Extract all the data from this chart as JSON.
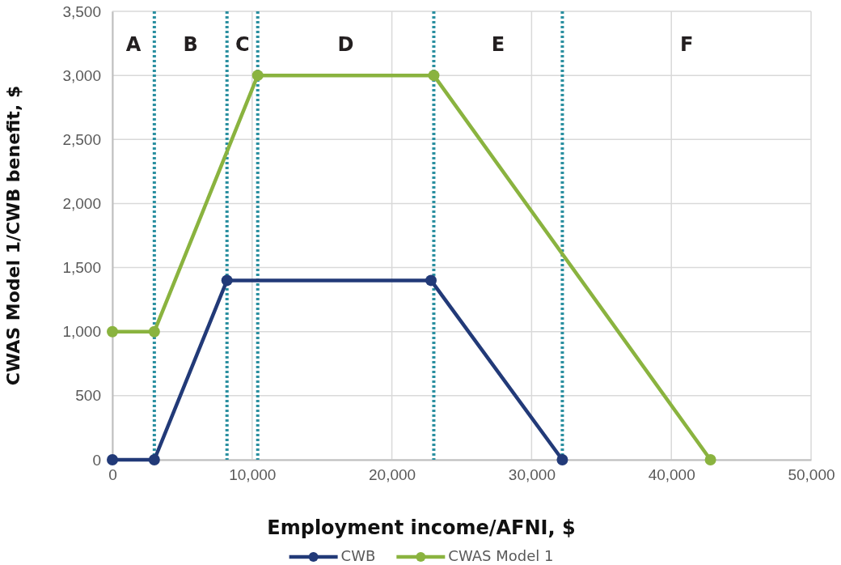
{
  "chart_data": {
    "type": "line",
    "xlabel": "Employment income/AFNI, $",
    "ylabel": "CWAS Model 1/CWB benefit, $",
    "xlim": [
      0,
      50000
    ],
    "xticks": [
      {
        "value": 0,
        "label": "0"
      },
      {
        "value": 10000,
        "label": "10,000"
      },
      {
        "value": 20000,
        "label": "20,000"
      },
      {
        "value": 30000,
        "label": "30,000"
      },
      {
        "value": 40000,
        "label": "40,000"
      },
      {
        "value": 50000,
        "label": "50,000"
      }
    ],
    "ylim": [
      0,
      3500
    ],
    "yticks": [
      {
        "value": 0,
        "label": "0"
      },
      {
        "value": 500,
        "label": "500"
      },
      {
        "value": 1000,
        "label": "1,000"
      },
      {
        "value": 1500,
        "label": "1,500"
      },
      {
        "value": 2000,
        "label": "2,000"
      },
      {
        "value": 2500,
        "label": "2,500"
      },
      {
        "value": 3000,
        "label": "3,000"
      },
      {
        "value": 3500,
        "label": "3,500"
      }
    ],
    "series": [
      {
        "name": "CWB",
        "color": "#223a78",
        "x": [
          0,
          3000,
          8200,
          22800,
          32200
        ],
        "values": [
          0,
          0,
          1400,
          1400,
          0
        ]
      },
      {
        "name": "CWAS Model 1",
        "color": "#8ab33f",
        "x": [
          0,
          3000,
          10400,
          23000,
          42800
        ],
        "values": [
          1000,
          1000,
          3000,
          3000,
          0
        ]
      }
    ],
    "ref_lines": [
      {
        "axis": "x",
        "value": 3000,
        "color": "#2a8fa0",
        "line_style": "dotted"
      },
      {
        "axis": "x",
        "value": 8200,
        "color": "#2a8fa0",
        "line_style": "dotted"
      },
      {
        "axis": "x",
        "value": 10400,
        "color": "#2a8fa0",
        "line_style": "dotted"
      },
      {
        "axis": "x",
        "value": 23000,
        "color": "#2a8fa0",
        "line_style": "dotted"
      },
      {
        "axis": "x",
        "value": 32200,
        "color": "#2a8fa0",
        "line_style": "dotted"
      }
    ],
    "annotations": [
      "A",
      "B",
      "C",
      "D",
      "E",
      "F"
    ],
    "grid": true,
    "legend": "bottom",
    "marker": "circle",
    "line_style": "solid"
  }
}
